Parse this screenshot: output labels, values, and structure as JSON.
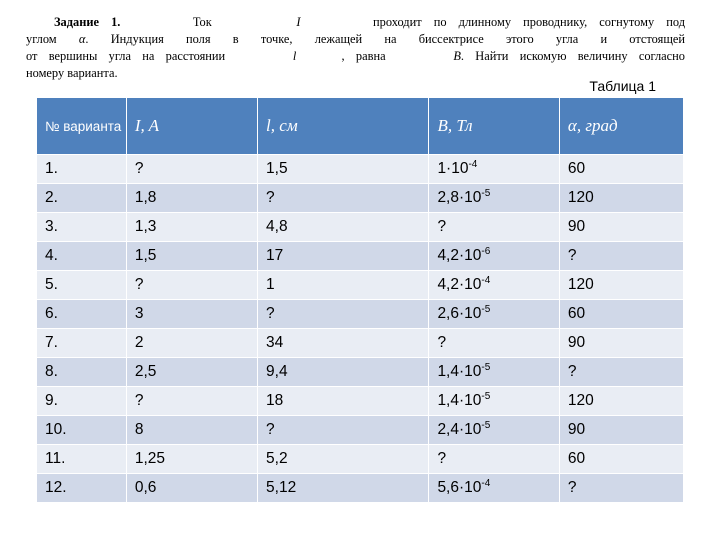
{
  "problem": {
    "heading": "Задание 1.",
    "lines": [
      [
        "Ток",
        "I",
        "проходит по длинному проводнику, согнутому под"
      ],
      [
        "углом",
        "α",
        ". Индукция поля в точке, лежащей на биссектрисе этого угла и отстоящей"
      ],
      [
        "от вершины угла на расстоянии",
        "l",
        ", равна",
        "B",
        ". Найти искомую величину согласно"
      ],
      [
        "номеру варианта."
      ]
    ]
  },
  "caption": "Таблица 1",
  "table": {
    "headers": [
      "№ варианта",
      "I, A",
      "l, см",
      "B, Тл",
      "α, град"
    ],
    "rows": [
      {
        "n": "1.",
        "I": "?",
        "l": "1,5",
        "B": "1·10",
        "Bexp": "-4",
        "a": "60"
      },
      {
        "n": "2.",
        "I": "1,8",
        "l": "?",
        "B": "2,8·10",
        "Bexp": "-5",
        "a": "120"
      },
      {
        "n": "3.",
        "I": "1,3",
        "l": "4,8",
        "B": "?",
        "Bexp": "",
        "a": "90"
      },
      {
        "n": "4.",
        "I": "1,5",
        "l": "17",
        "B": "4,2·10",
        "Bexp": "-6",
        "a": "?"
      },
      {
        "n": "5.",
        "I": "?",
        "l": "1",
        "B": "4,2·10",
        "Bexp": "-4",
        "a": "120"
      },
      {
        "n": "6.",
        "I": "3",
        "l": "?",
        "B": "2,6·10",
        "Bexp": "-5",
        "a": "60"
      },
      {
        "n": "7.",
        "I": "2",
        "l": "34",
        "B": "?",
        "Bexp": "",
        "a": "90"
      },
      {
        "n": "8.",
        "I": "2,5",
        "l": "9,4",
        "B": "1,4·10",
        "Bexp": "-5",
        "a": "?"
      },
      {
        "n": "9.",
        "I": "?",
        "l": "18",
        "B": "1,4·10",
        "Bexp": "-5",
        "a": "120"
      },
      {
        "n": "10.",
        "I": "8",
        "l": "?",
        "B": "2,4·10",
        "Bexp": "-5",
        "a": "90"
      },
      {
        "n": "11.",
        "I": "1,25",
        "l": "5,2",
        "B": "?",
        "Bexp": "",
        "a": "60"
      },
      {
        "n": "12.",
        "I": "0,6",
        "l": "5,12",
        "B": "5,6·10",
        "Bexp": "-4",
        "a": "?"
      }
    ]
  }
}
